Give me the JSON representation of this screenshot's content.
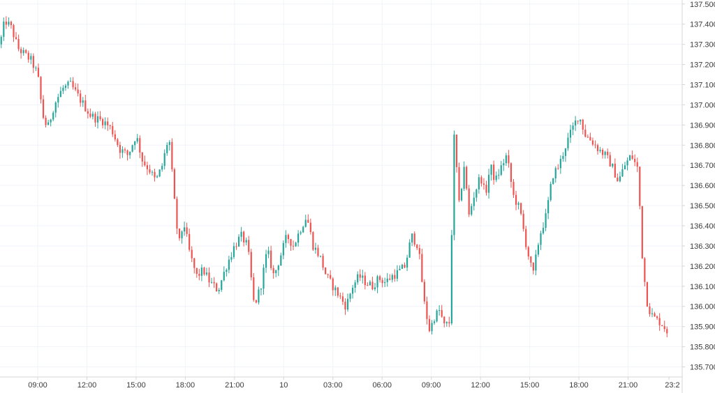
{
  "colors": {
    "up": "#26a69a",
    "down": "#ef5350",
    "grid": "#f0f3fa",
    "axis": "#d6d6d6",
    "text": "#3a3a3a",
    "background": "#ffffff"
  },
  "chart_data": {
    "type": "candlestick",
    "title": "",
    "xlabel": "",
    "ylabel": "",
    "ylim": [
      135.65,
      137.52
    ],
    "grid": true,
    "legend": "none",
    "y_ticks": [
      "137.500",
      "137.400",
      "137.300",
      "137.200",
      "137.100",
      "137.000",
      "136.900",
      "136.800",
      "136.700",
      "136.600",
      "136.500",
      "136.400",
      "136.300",
      "136.200",
      "136.100",
      "136.000",
      "135.900",
      "135.800",
      "135.700"
    ],
    "x_ticks": [
      "09:00",
      "12:00",
      "15:00",
      "18:00",
      "21:00",
      "10",
      "03:00",
      "06:00",
      "09:00",
      "12:00",
      "15:00",
      "18:00",
      "21:00",
      "23:2"
    ],
    "x_tick_hours": [
      9,
      12,
      15,
      18,
      21,
      24,
      27,
      30,
      33,
      36,
      39,
      42,
      45,
      47.5
    ],
    "x_range_hours": [
      6.7,
      48.3
    ],
    "price_path_hours": [
      6.7,
      7.0,
      7.4,
      7.8,
      8.2,
      8.6,
      9.0,
      9.3,
      9.6,
      10.0,
      10.5,
      11.0,
      11.4,
      11.8,
      12.2,
      12.6,
      13.0,
      13.5,
      14.0,
      14.5,
      15.0,
      15.4,
      15.8,
      16.2,
      16.6,
      17.0,
      17.3,
      17.6,
      17.9,
      18.3,
      18.7,
      19.1,
      19.5,
      20.0,
      20.5,
      21.0,
      21.4,
      21.8,
      22.2,
      22.6,
      23.0,
      23.4,
      23.8,
      24.2,
      24.6,
      25.0,
      25.4,
      25.8,
      26.2,
      26.6,
      27.0,
      27.4,
      27.8,
      28.2,
      28.6,
      29.0,
      29.4,
      29.8,
      30.2,
      30.6,
      31.0,
      31.4,
      31.8,
      32.2,
      32.6,
      32.9,
      33.2,
      33.5,
      33.8,
      34.1,
      34.4,
      34.7,
      35.0,
      35.3,
      35.6,
      35.8,
      36.0,
      36.3,
      36.6,
      36.9,
      37.2,
      37.6,
      38.0,
      38.4,
      38.8,
      39.2,
      39.6,
      40.0,
      40.4,
      40.8,
      41.2,
      41.6,
      42.0,
      42.4,
      42.8,
      43.2,
      43.6,
      44.0,
      44.4,
      44.8,
      45.2,
      45.6,
      45.9,
      46.2,
      46.5,
      46.8,
      47.0,
      47.2,
      47.35,
      47.45
    ],
    "price_path": [
      137.3,
      137.42,
      137.38,
      137.28,
      137.25,
      137.22,
      137.15,
      136.95,
      136.88,
      137.0,
      137.08,
      137.1,
      137.05,
      137.0,
      136.95,
      136.93,
      136.92,
      136.88,
      136.78,
      136.75,
      136.85,
      136.72,
      136.68,
      136.62,
      136.7,
      136.85,
      136.55,
      136.3,
      136.42,
      136.25,
      136.15,
      136.18,
      136.12,
      136.08,
      136.2,
      136.3,
      136.35,
      136.3,
      136.0,
      136.1,
      136.28,
      136.15,
      136.25,
      136.35,
      136.3,
      136.38,
      136.45,
      136.3,
      136.25,
      136.15,
      136.1,
      136.05,
      136.0,
      136.1,
      136.15,
      136.12,
      136.1,
      136.14,
      136.12,
      136.15,
      136.17,
      136.2,
      136.35,
      136.3,
      136.0,
      135.88,
      135.95,
      135.98,
      135.9,
      135.92,
      136.85,
      136.5,
      136.7,
      136.45,
      136.55,
      136.6,
      136.65,
      136.55,
      136.7,
      136.62,
      136.68,
      136.75,
      136.55,
      136.48,
      136.3,
      136.15,
      136.35,
      136.45,
      136.65,
      136.7,
      136.8,
      136.88,
      136.95,
      136.85,
      136.82,
      136.78,
      136.75,
      136.7,
      136.62,
      136.7,
      136.75,
      136.68,
      136.2,
      136.0,
      135.95,
      135.93,
      135.92,
      135.9,
      135.88,
      135.88
    ],
    "candle_count": 270
  }
}
